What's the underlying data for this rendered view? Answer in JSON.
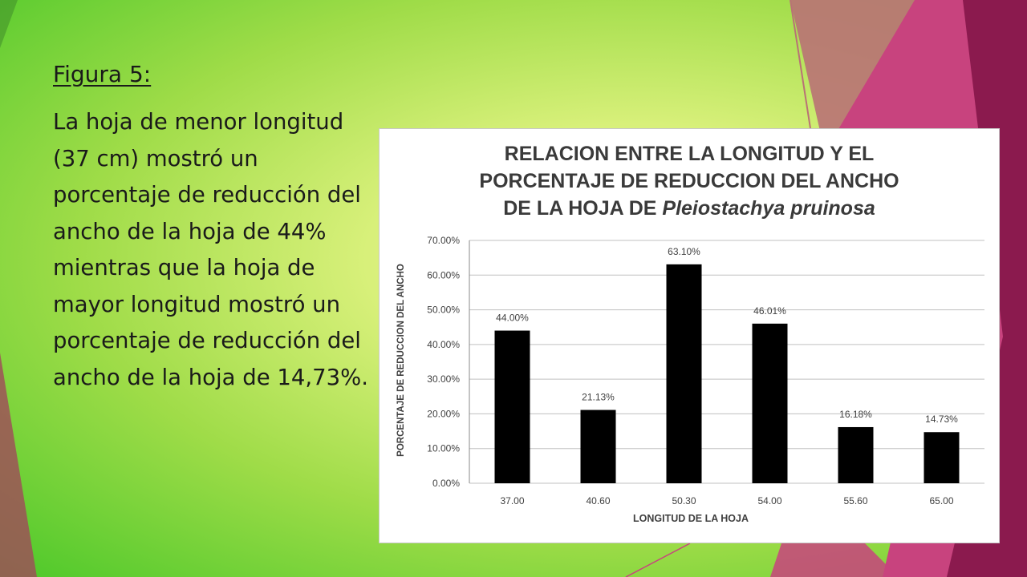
{
  "slide": {
    "figure_label": "Figura 5:",
    "description": "La hoja de menor longitud (37 cm) mostró un porcentaje de reducción del ancho de la hoja de 44% mientras que la hoja de mayor longitud mostró un porcentaje de reducción del ancho de la hoja de  14,73%."
  },
  "colors": {
    "bar": "#000000",
    "grid": "#c0c0c0",
    "axis_text": "#404040",
    "deco_dark": "#8b1a4e",
    "deco_pink": "#c8437e",
    "deco_rose": "#b97276"
  },
  "chart_data": {
    "type": "bar",
    "title_lines": [
      "RELACION ENTRE LA LONGITUD Y EL",
      "PORCENTAJE DE REDUCCION DEL ANCHO",
      "DE LA HOJA DE "
    ],
    "title_italic": "Pleiostachya pruinosa",
    "xlabel": "LONGITUD DE LA HOJA",
    "ylabel": "PORCENTAJE DE REDUCCION DEL ANCHO",
    "categories": [
      "37.00",
      "40.60",
      "50.30",
      "54.00",
      "55.60",
      "65.00"
    ],
    "values": [
      44.0,
      21.13,
      63.1,
      46.01,
      16.18,
      14.73
    ],
    "data_labels": [
      "44.00%",
      "21.13%",
      "63.10%",
      "46.01%",
      "16.18%",
      "14.73%"
    ],
    "ylim": [
      0,
      70
    ],
    "y_ticks": [
      0,
      10,
      20,
      30,
      40,
      50,
      60,
      70
    ],
    "y_tick_labels": [
      "0.00%",
      "10.00%",
      "20.00%",
      "30.00%",
      "40.00%",
      "50.00%",
      "60.00%",
      "70.00%"
    ],
    "grid": true,
    "legend": "none"
  }
}
